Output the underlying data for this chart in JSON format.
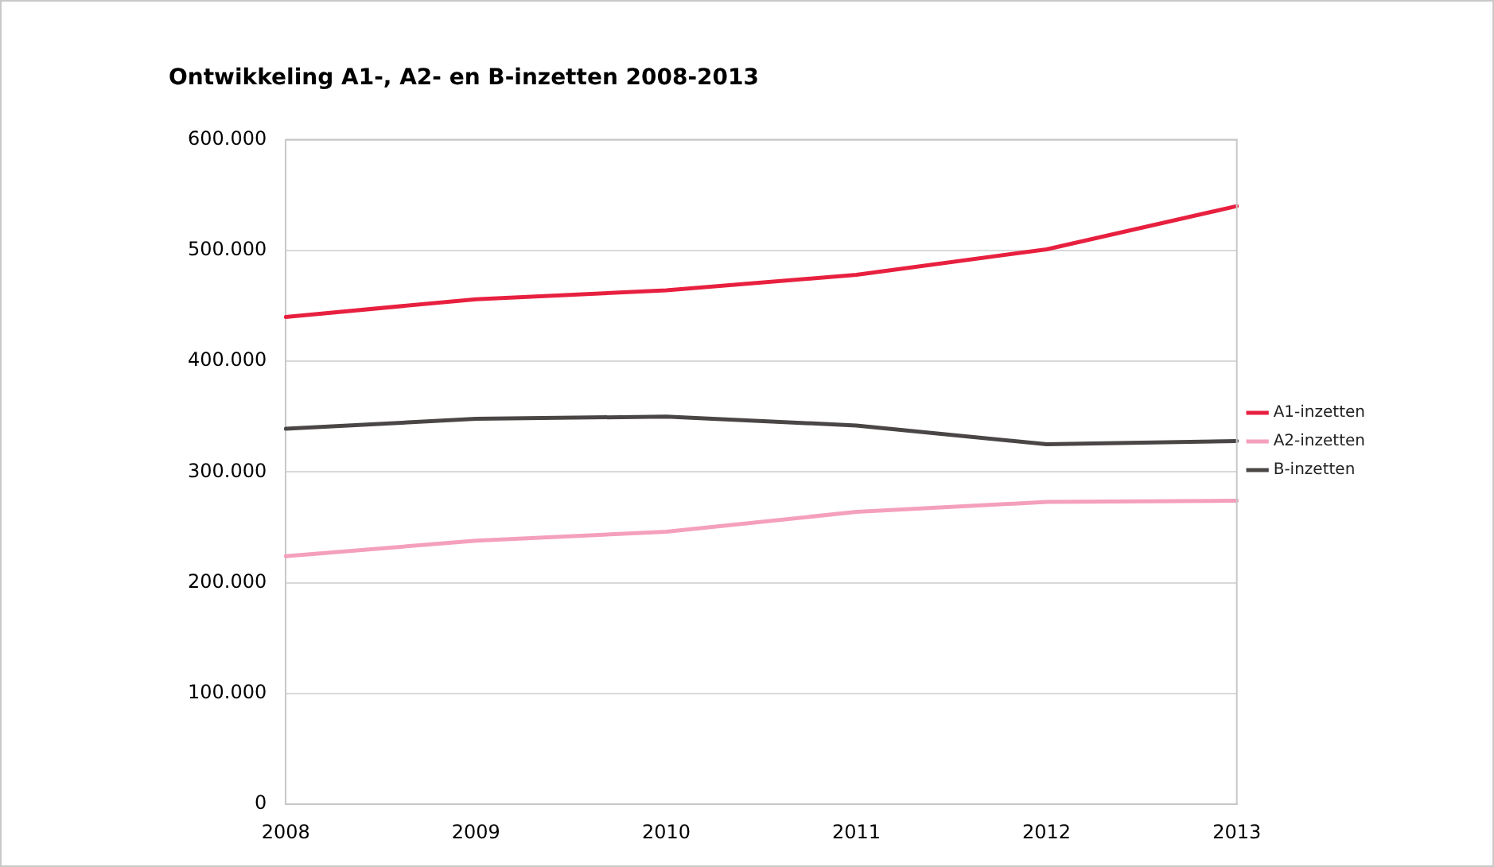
{
  "chart_data": {
    "type": "line",
    "title": "Ontwikkeling A1-, A2- en B-inzetten 2008-2013",
    "categories": [
      "2008",
      "2009",
      "2010",
      "2011",
      "2012",
      "2013"
    ],
    "series": [
      {
        "name": "A1-inzetten",
        "color": "#e8203f",
        "values": [
          440000,
          456000,
          464000,
          478000,
          501000,
          540000
        ]
      },
      {
        "name": "A2-inzetten",
        "color": "#f4a0bc",
        "values": [
          224000,
          238000,
          246000,
          264000,
          273000,
          274000
        ]
      },
      {
        "name": "B-inzetten",
        "color": "#4a4646",
        "values": [
          339000,
          348000,
          350000,
          342000,
          325000,
          328000
        ]
      }
    ],
    "ylim": [
      0,
      600000
    ],
    "yticks": [
      0,
      {
        "value": 100000,
        "label": "100.000"
      },
      {
        "value": 200000,
        "label": "200.000"
      },
      {
        "value": 300000,
        "label": "300.000"
      },
      {
        "value": 400000,
        "label": "400.000"
      },
      {
        "value": 500000,
        "label": "500.000"
      },
      {
        "value": 600000,
        "label": "600.000"
      }
    ],
    "grid": "y",
    "legend": "right",
    "marker": "none",
    "line_style": "solid"
  }
}
